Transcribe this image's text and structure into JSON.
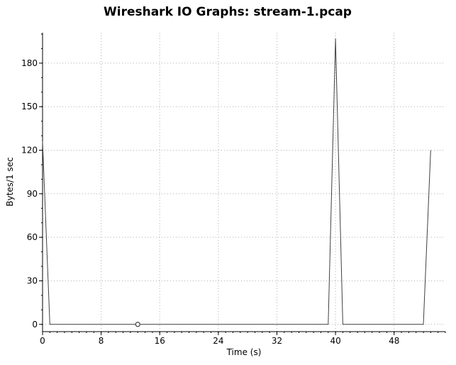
{
  "window": {
    "title": "Wireshark IO Graphs: stream-1.pcap"
  },
  "colors": {
    "series_line": "#404040",
    "grid": "#b0b0b0",
    "axis": "#000000",
    "marker": "#404040"
  },
  "chart_data": {
    "type": "line",
    "title": "Wireshark IO Graphs: stream-1.pcap",
    "xlabel": "Time (s)",
    "ylabel": "Bytes/1 sec",
    "xlim": [
      0,
      55
    ],
    "ylim": [
      -5,
      201
    ],
    "xticks": [
      0,
      8,
      16,
      24,
      32,
      40,
      48
    ],
    "yticks": [
      0,
      30,
      60,
      90,
      120,
      150,
      180
    ],
    "grid": true,
    "series": [
      {
        "x": [
          0,
          1,
          39,
          40,
          41,
          52,
          53
        ],
        "y": [
          126,
          0,
          0,
          197,
          0,
          0,
          120
        ]
      }
    ],
    "marker": {
      "x": 13,
      "y": 0,
      "shape": "open-circle"
    }
  }
}
